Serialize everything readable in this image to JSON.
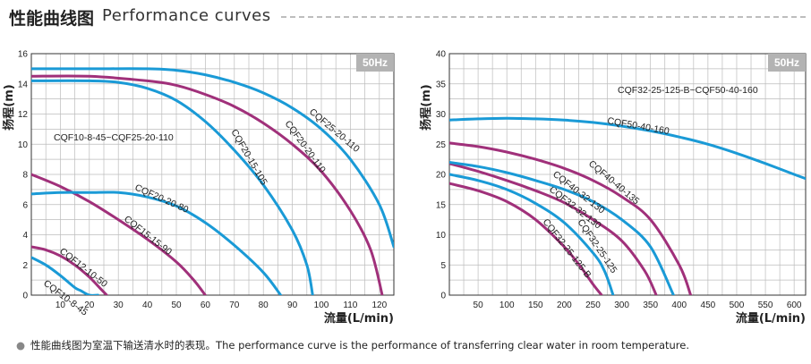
{
  "header": {
    "title_cn": "性能曲线图",
    "title_en": "Performance curves"
  },
  "footnote": "性能曲线图为室温下输送清水时的表现。The performance curve is the performance of transferring clear water in room temperature.",
  "colors": {
    "blue": "#1a9ad6",
    "magenta": "#a0307a",
    "grid": "#bcbcbc",
    "badge": "#b3b3b3"
  },
  "chart_data": [
    {
      "type": "line",
      "frequency_badge": "50Hz",
      "range_label": "CQF10-8-45~CQF25-20-110",
      "xlabel": "流量(L/min)",
      "ylabel": "扬程(m)",
      "xlim": [
        0,
        125
      ],
      "ylim": [
        0,
        16
      ],
      "xticks": [
        10,
        20,
        30,
        40,
        50,
        60,
        70,
        80,
        90,
        100,
        110,
        120
      ],
      "yticks": [
        0,
        2,
        4,
        6,
        8,
        10,
        12,
        14,
        16
      ],
      "grid": true,
      "series": [
        {
          "name": "CQF10-8-45",
          "color": "#1a9ad6",
          "x": [
            0,
            5,
            10,
            15,
            17,
            20,
            23
          ],
          "y": [
            2.5,
            2.0,
            1.3,
            0.5,
            0.3,
            0.0,
            0.0
          ]
        },
        {
          "name": "CQF12-10-50",
          "color": "#a0307a",
          "x": [
            0,
            5,
            10,
            15,
            20,
            24,
            26
          ],
          "y": [
            3.2,
            3.0,
            2.6,
            2.0,
            1.2,
            0.4,
            0
          ]
        },
        {
          "name": "CQF15-15-90",
          "color": "#a0307a",
          "x": [
            0,
            10,
            20,
            30,
            40,
            50,
            56,
            60
          ],
          "y": [
            8.0,
            7.2,
            6.2,
            5.0,
            3.7,
            2.2,
            1.0,
            0
          ]
        },
        {
          "name": "CQF20-20-80",
          "color": "#1a9ad6",
          "x": [
            0,
            10,
            20,
            30,
            40,
            50,
            60,
            70,
            80,
            86
          ],
          "y": [
            6.7,
            6.8,
            6.8,
            6.8,
            6.5,
            5.9,
            4.8,
            3.3,
            1.5,
            0
          ]
        },
        {
          "name": "CQF20-15-105",
          "color": "#1a9ad6",
          "x": [
            0,
            20,
            30,
            40,
            50,
            60,
            70,
            80,
            90,
            95,
            97
          ],
          "y": [
            14.2,
            14.2,
            14.1,
            13.7,
            12.9,
            11.5,
            9.6,
            7.3,
            4.3,
            2.0,
            0
          ]
        },
        {
          "name": "CQF20-20-110",
          "color": "#a0307a",
          "x": [
            0,
            20,
            40,
            50,
            60,
            70,
            80,
            90,
            100,
            110,
            117,
            121
          ],
          "y": [
            14.5,
            14.5,
            14.2,
            13.9,
            13.3,
            12.5,
            11.4,
            10.0,
            8.2,
            5.6,
            3.0,
            0
          ]
        },
        {
          "name": "CQF25-20-110",
          "color": "#1a9ad6",
          "x": [
            0,
            20,
            40,
            50,
            60,
            70,
            80,
            90,
            100,
            110,
            120,
            125
          ],
          "y": [
            15.0,
            15.0,
            15.0,
            14.9,
            14.6,
            14.1,
            13.4,
            12.4,
            11.0,
            9.0,
            6.0,
            3.2
          ]
        }
      ]
    },
    {
      "type": "line",
      "frequency_badge": "50Hz",
      "range_label": "CQF32-25-125-B~CQF50-40-160",
      "xlabel": "流量(L/min)",
      "ylabel": "扬程(m)",
      "xlim": [
        0,
        620
      ],
      "ylim": [
        0,
        40
      ],
      "xticks": [
        50,
        100,
        150,
        200,
        250,
        300,
        350,
        400,
        450,
        500,
        550,
        600
      ],
      "yticks": [
        0,
        5,
        10,
        15,
        20,
        25,
        30,
        35,
        40
      ],
      "grid": true,
      "series": [
        {
          "name": "CQF32-25-125-B",
          "color": "#a0307a",
          "x": [
            0,
            50,
            100,
            150,
            200,
            230,
            250,
            265
          ],
          "y": [
            18.5,
            17.3,
            15.5,
            12.5,
            8.0,
            4.5,
            1.8,
            0
          ]
        },
        {
          "name": "CQF32-25-125",
          "color": "#1a9ad6",
          "x": [
            0,
            50,
            100,
            150,
            200,
            250,
            270,
            285
          ],
          "y": [
            20.0,
            19.0,
            17.5,
            15.2,
            12.0,
            7.0,
            4.0,
            0
          ]
        },
        {
          "name": "CQF32-32-130",
          "color": "#a0307a",
          "x": [
            0,
            50,
            100,
            150,
            200,
            250,
            300,
            340,
            360
          ],
          "y": [
            21.8,
            20.5,
            19.0,
            17.3,
            15.3,
            12.5,
            9.0,
            4.0,
            0
          ]
        },
        {
          "name": "CQF40-32-130",
          "color": "#1a9ad6",
          "x": [
            0,
            50,
            100,
            150,
            200,
            250,
            300,
            350,
            390
          ],
          "y": [
            22.0,
            21.3,
            20.3,
            19.0,
            17.5,
            15.5,
            12.5,
            8.0,
            0
          ]
        },
        {
          "name": "CQF40-40-135",
          "color": "#a0307a",
          "x": [
            0,
            50,
            100,
            150,
            200,
            250,
            300,
            350,
            400,
            420
          ],
          "y": [
            25.2,
            24.6,
            23.7,
            22.5,
            21.0,
            19.0,
            16.3,
            12.5,
            5.0,
            0
          ]
        },
        {
          "name": "CQF50-40-160",
          "color": "#1a9ad6",
          "x": [
            0,
            50,
            100,
            150,
            200,
            250,
            300,
            350,
            400,
            450,
            500,
            550,
            600,
            620
          ],
          "y": [
            29.0,
            29.2,
            29.3,
            29.2,
            29.0,
            28.6,
            28.0,
            27.2,
            26.2,
            25.0,
            23.5,
            21.8,
            20.0,
            19.3
          ]
        }
      ]
    }
  ]
}
